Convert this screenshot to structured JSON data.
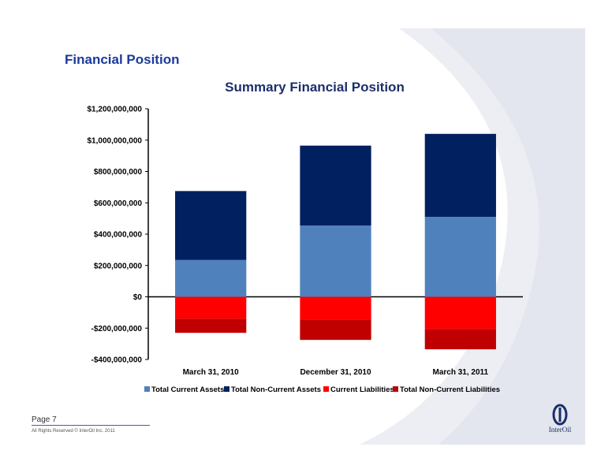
{
  "slide": {
    "title": "Financial Position",
    "page_label": "Page 7",
    "copyright": "All Rights Reserved © InterOil Inc. 2011",
    "logo_text": "InterOil"
  },
  "colors": {
    "total_current_assets": "#4f81bd",
    "total_non_current_assets": "#002060",
    "current_liabilities": "#ff0000",
    "total_non_current_liabilities": "#c00000",
    "title": "#1b3a9a"
  },
  "chart_data": {
    "type": "bar",
    "stacked": true,
    "title": "Summary Financial Position",
    "categories": [
      "March 31, 2010",
      "December 31, 2010",
      "March 31, 2011"
    ],
    "series": [
      {
        "name": "Total Current Assets",
        "values": [
          235000000,
          455000000,
          510000000
        ]
      },
      {
        "name": "Total Non-Current Assets",
        "values": [
          440000000,
          510000000,
          530000000
        ]
      },
      {
        "name": "Current Liabilities",
        "values": [
          -140000000,
          -145000000,
          -205000000
        ]
      },
      {
        "name": "Total Non-Current Liabilities",
        "values": [
          -90000000,
          -130000000,
          -130000000
        ]
      }
    ],
    "ylim": [
      -400000000,
      1200000000
    ],
    "yticks": [
      1200000000,
      1000000000,
      800000000,
      600000000,
      400000000,
      200000000,
      0,
      -200000000,
      -400000000
    ],
    "ytick_labels": [
      "$1,200,000,000",
      "$1,000,000,000",
      "$800,000,000",
      "$600,000,000",
      "$400,000,000",
      "$200,000,000",
      "$0",
      "-$200,000,000",
      "-$400,000,000"
    ],
    "legend_position": "bottom",
    "grid": false
  }
}
